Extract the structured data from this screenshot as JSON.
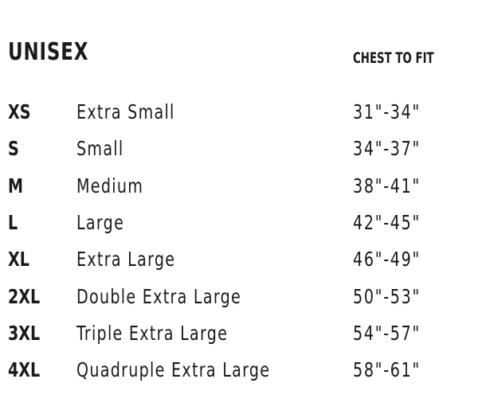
{
  "title": "UNISEX",
  "column_header": "CHEST TO FIT",
  "rows": [
    {
      "code": "XS",
      "name": "Extra Small",
      "range": "31\"-34\""
    },
    {
      "code": "S",
      "name": "Small",
      "range": "34\"-37\""
    },
    {
      "code": "M",
      "name": "Medium",
      "range": "38\"-41\""
    },
    {
      "code": "L",
      "name": "Large",
      "range": "42\"-45\""
    },
    {
      "code": "XL",
      "name": "Extra Large",
      "range": "46\"-49\""
    },
    {
      "code": "2XL",
      "name": "Double Extra Large",
      "range": "50\"-53\""
    },
    {
      "code": "3XL",
      "name": "Triple Extra Large",
      "range": "54\"-57\""
    },
    {
      "code": "4XL",
      "name": "Quadruple Extra Large",
      "range": "58\"-61\""
    }
  ]
}
